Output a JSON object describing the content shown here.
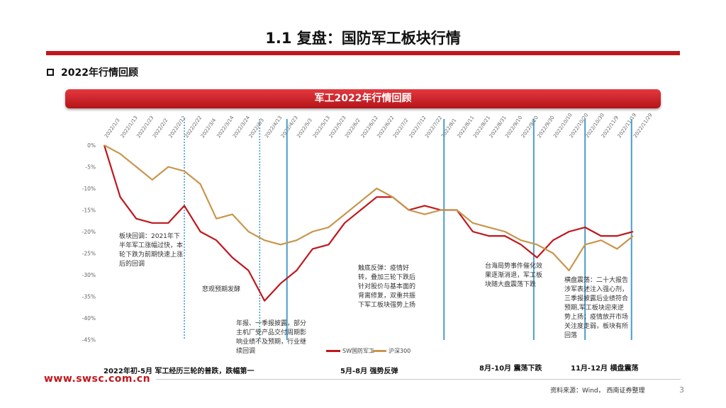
{
  "slide": {
    "title": "1.1 复盘：国防军工板块行情",
    "section": "2022年行情回顾",
    "banner": "军工2022年行情回顾",
    "footer_url": "www.swsc.com.cn",
    "source": "资料来源：Wind， 西南证券整理",
    "page": "3"
  },
  "annotations": {
    "a1": "板块回调：2021年下半年军工涨幅过快，本轮下跌为前期快速上涨后的回调",
    "a2": "悲观预期发酵",
    "a3": "年报、一季报披露，部分主机厂受产品交付周期影响业绩不及预期，行业继续回调",
    "a4": "触底反弹：疫情好转，叠加三轮下跌后针对股价与基本面的背离修复，双重共振下军工板块强势上扬",
    "a5": "台海局势事件催化效果逐渐消退，军工板块随大盘震荡下跌",
    "a6": "横盘震荡：二十大报告涉军表述注入强心剂，三季报披露后业绩符合预期,军工板块迎来逆势上扬；疫情放开市场关注度走弱，板块有所回落"
  },
  "phases": {
    "p1": "2022年初-5月 军工经历三轮的普跌，跌幅第一",
    "p2": "5月-8月 强势反弹",
    "p3": "8月-10月 震荡下跌",
    "p4": "11月-12月  横盘震荡"
  },
  "colors": {
    "sw": "#c0171d",
    "hs300": "#c9954c",
    "divider": "#4a9cc9",
    "brand": "#c0171d"
  },
  "chart_data": {
    "type": "line",
    "x": [
      "2022/1/3",
      "2022/1/13",
      "2022/1/23",
      "2022/2/2",
      "2022/2/12",
      "2022/2/22",
      "2022/3/4",
      "2022/3/14",
      "2022/3/24",
      "2022/4/3",
      "2022/4/13",
      "2022/4/23",
      "2022/5/3",
      "2022/5/13",
      "2022/5/23",
      "2022/6/2",
      "2022/6/12",
      "2022/6/22",
      "2022/7/2",
      "2022/7/12",
      "2022/7/22",
      "2022/8/1",
      "2022/8/11",
      "2022/8/21",
      "2022/8/31",
      "2022/9/10",
      "2022/9/20",
      "2022/9/30",
      "2022/10/10",
      "2022/10/20",
      "2022/10/30",
      "2022/11/9",
      "2022/11/19",
      "2022/11/29"
    ],
    "yticks": [
      "0%",
      "-5%",
      "-10%",
      "-15%",
      "-20%",
      "-25%",
      "-30%",
      "-35%",
      "-40%",
      "-45%"
    ],
    "ylim": [
      -47,
      0
    ],
    "dividers": [
      "2022/2/22",
      "2022/4/10",
      "2022/4/27",
      "2022/8/3",
      "2022/9/28",
      "2022/10/30",
      "2022/11/28"
    ],
    "series": [
      {
        "name": "SW国防军工",
        "color": "#c0171d",
        "values": [
          0,
          -12,
          -17,
          -18,
          -18,
          -14,
          -20,
          -22,
          -26,
          -29,
          -36,
          -32,
          -29,
          -24,
          -23,
          -18,
          -15,
          -12,
          -12,
          -15,
          -14,
          -15,
          -15,
          -20,
          -21,
          -21,
          -23,
          -26,
          -22,
          -20,
          -19,
          -21,
          -21,
          -20
        ]
      },
      {
        "name": "沪深300",
        "color": "#c9954c",
        "values": [
          0,
          -2,
          -5,
          -8,
          -5,
          -6,
          -9,
          -17,
          -16,
          -20,
          -22,
          -23,
          -22,
          -20,
          -19,
          -16,
          -13,
          -10,
          -12,
          -15,
          -16,
          -15,
          -15,
          -18,
          -19,
          -20,
          -22,
          -23,
          -25,
          -29,
          -23,
          -22,
          -24,
          -21
        ]
      }
    ]
  }
}
